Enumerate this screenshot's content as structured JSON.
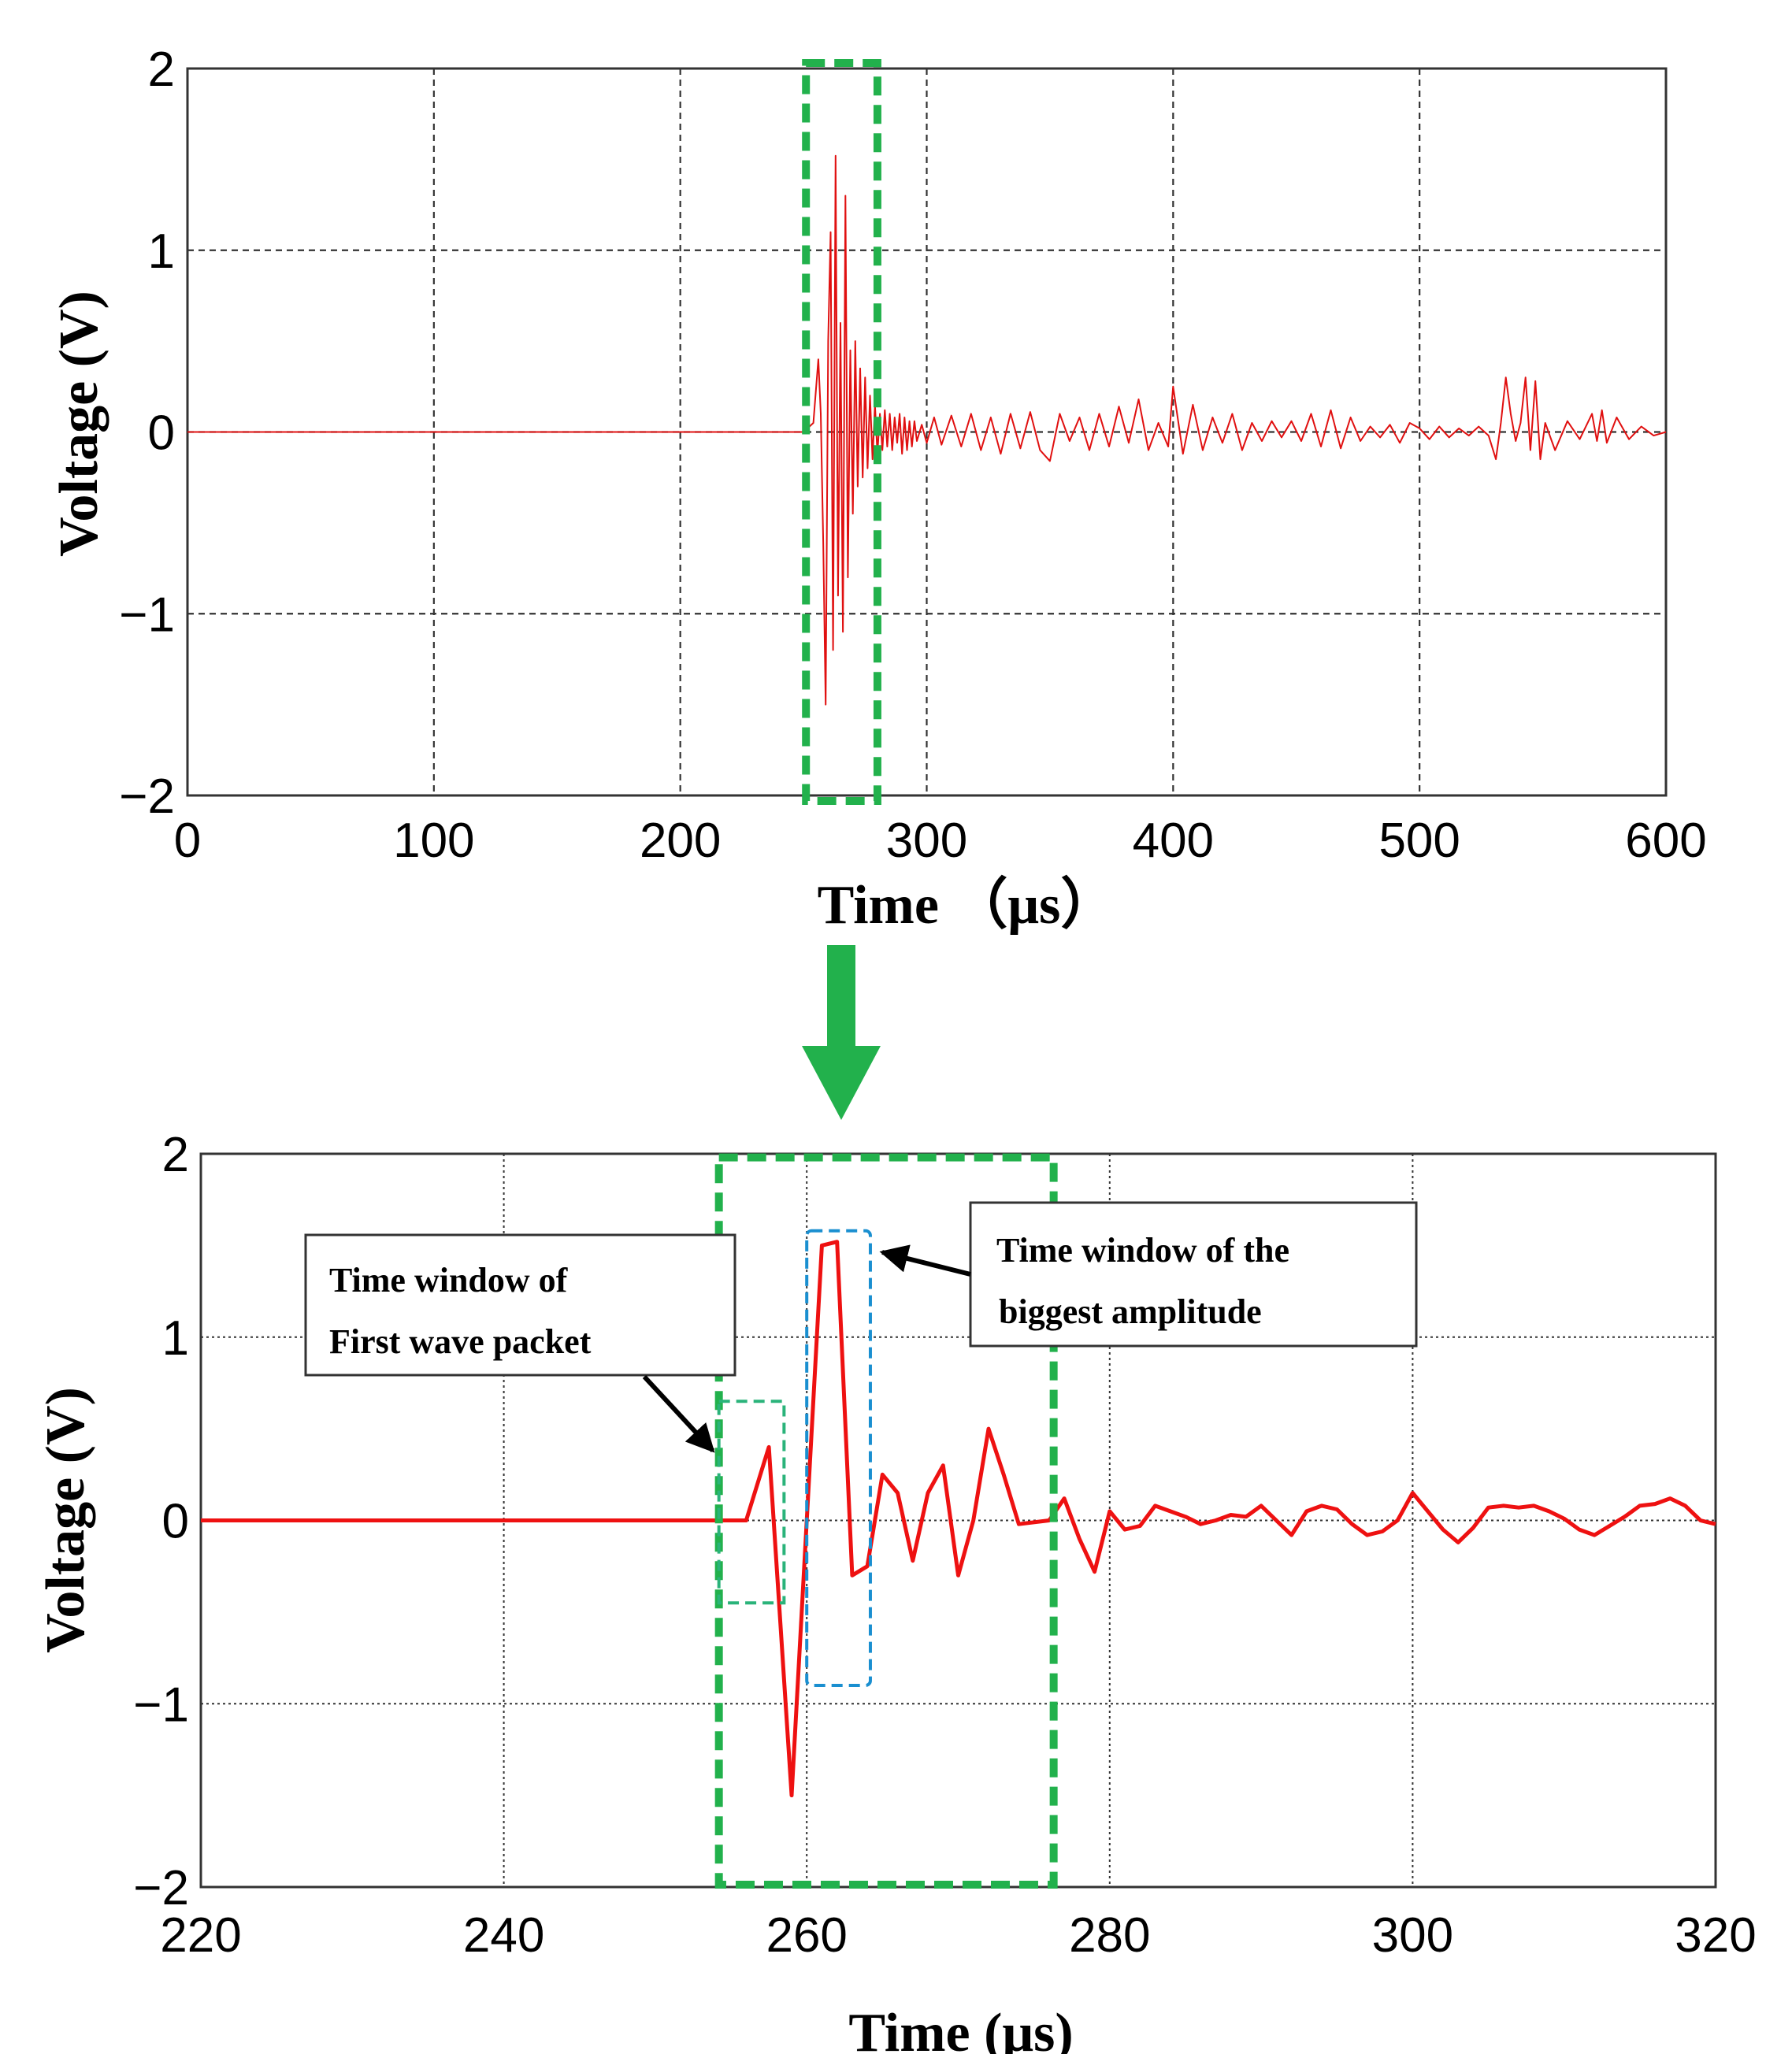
{
  "chart_data": [
    {
      "type": "line",
      "name": "full-signal",
      "xlabel": "Time （μs）",
      "ylabel": "Voltage (V)",
      "xlim": [
        0,
        600
      ],
      "ylim": [
        -2,
        2
      ],
      "xticks": [
        0,
        100,
        200,
        300,
        400,
        500,
        600
      ],
      "xtick_labels": [
        "0",
        "100",
        "200",
        "300",
        "400",
        "500",
        "600"
      ],
      "yticks": [
        -2,
        -1,
        0,
        1,
        2
      ],
      "ytick_labels": [
        "−2",
        "−1",
        "0",
        "1",
        "2"
      ],
      "grid": true,
      "line_color": "#e01010",
      "highlight_window": {
        "x_range": [
          251,
          280
        ],
        "y_range": [
          -2,
          2
        ],
        "color": "#22b14c"
      },
      "series": [
        {
          "name": "voltage",
          "x": [
            0,
            250,
            254,
            256,
            257,
            258,
            259,
            260,
            261,
            262,
            263,
            264,
            265,
            266,
            267,
            268,
            269,
            270,
            271,
            272,
            273,
            274,
            275,
            276,
            277,
            278,
            279,
            280,
            281,
            282,
            283,
            284,
            285,
            286,
            287,
            288,
            289,
            290,
            291,
            292,
            293,
            294,
            295,
            296,
            298,
            300,
            303,
            306,
            310,
            314,
            318,
            322,
            326,
            330,
            334,
            338,
            342,
            346,
            350,
            354,
            358,
            362,
            366,
            370,
            374,
            378,
            382,
            386,
            390,
            394,
            398,
            400,
            404,
            408,
            412,
            416,
            420,
            424,
            428,
            432,
            436,
            440,
            444,
            448,
            452,
            456,
            460,
            464,
            468,
            472,
            476,
            480,
            484,
            488,
            492,
            496,
            500,
            504,
            508,
            512,
            516,
            520,
            524,
            528,
            531,
            533,
            535,
            537,
            539,
            541,
            543,
            545,
            547,
            549,
            551,
            555,
            560,
            565,
            570,
            572,
            574,
            576,
            580,
            585,
            590,
            595,
            600
          ],
          "y": [
            0,
            0,
            0.05,
            0.4,
            0.1,
            -0.6,
            -1.5,
            0.5,
            1.1,
            -1.2,
            1.52,
            -0.9,
            0.6,
            -1.1,
            1.3,
            -0.8,
            0.45,
            -0.45,
            0.5,
            -0.3,
            0.35,
            -0.25,
            0.3,
            -0.2,
            0.2,
            -0.15,
            0.15,
            -0.12,
            0.1,
            -0.1,
            0.12,
            -0.08,
            0.1,
            -0.1,
            0.08,
            -0.06,
            0.1,
            -0.12,
            0.08,
            -0.1,
            0.06,
            -0.08,
            0.06,
            -0.05,
            0.04,
            -0.06,
            0.08,
            -0.07,
            0.09,
            -0.08,
            0.1,
            -0.1,
            0.08,
            -0.12,
            0.1,
            -0.09,
            0.11,
            -0.1,
            -0.16,
            0.1,
            -0.05,
            0.08,
            -0.1,
            0.1,
            -0.08,
            0.14,
            -0.06,
            0.18,
            -0.1,
            0.05,
            -0.08,
            0.25,
            -0.12,
            0.15,
            -0.1,
            0.08,
            -0.06,
            0.1,
            -0.1,
            0.05,
            -0.05,
            0.06,
            -0.03,
            0.06,
            -0.05,
            0.1,
            -0.08,
            0.12,
            -0.09,
            0.08,
            -0.05,
            0.03,
            -0.03,
            0.04,
            -0.06,
            0.05,
            0.02,
            -0.04,
            0.03,
            -0.03,
            0.02,
            -0.02,
            0.03,
            -0.02,
            -0.15,
            0.05,
            0.3,
            0.1,
            -0.05,
            0.05,
            0.3,
            -0.1,
            0.28,
            -0.15,
            0.05,
            -0.1,
            0.06,
            -0.04,
            0.1,
            -0.05,
            0.12,
            -0.06,
            0.08,
            -0.04,
            0.03,
            -0.02,
            0
          ]
        }
      ]
    },
    {
      "type": "line",
      "name": "zoomed-signal",
      "xlabel": "Time (μs)",
      "ylabel": "Voltage (V)",
      "xlim": [
        220,
        320
      ],
      "ylim": [
        -2,
        2
      ],
      "xticks": [
        220,
        240,
        260,
        280,
        300,
        320
      ],
      "xtick_labels": [
        "220",
        "240",
        "260",
        "280",
        "300",
        "320"
      ],
      "yticks": [
        -2,
        -1,
        0,
        1,
        2
      ],
      "ytick_labels": [
        "−2",
        "−1",
        "0",
        "1",
        "2"
      ],
      "grid": true,
      "line_color": "#ee1111",
      "highlight_window": {
        "x_range": [
          254.2,
          276.3
        ],
        "y_range": [
          -2,
          1.98
        ],
        "color": "#22b14c"
      },
      "first_packet_window": {
        "x_range": [
          254.2,
          258.5
        ],
        "y_range": [
          -0.45,
          0.65
        ],
        "color": "#2ab37a"
      },
      "max_amplitude_window": {
        "x_range": [
          260,
          264.2
        ],
        "y_range": [
          -0.9,
          1.58
        ],
        "color": "#1a8fd0"
      },
      "annotations": [
        {
          "text": "Time window of First wave packet",
          "lines": [
            "Time window of",
            "First wave packet"
          ],
          "points_to": [
            254.2,
            0.4
          ]
        },
        {
          "text": "Time window of the biggest amplitude",
          "lines": [
            "Time window of the",
            "biggest amplitude"
          ],
          "points_to": [
            264.2,
            1.5
          ]
        }
      ],
      "series": [
        {
          "name": "voltage",
          "x": [
            220,
            256,
            257.5,
            259,
            261,
            262,
            263,
            264,
            265,
            266,
            267,
            268,
            269,
            270,
            271,
            272,
            273,
            274,
            276,
            277,
            278,
            279,
            280,
            281,
            282,
            283,
            284,
            285,
            286,
            287,
            288,
            289,
            290,
            291,
            292,
            293,
            294,
            295,
            296,
            297,
            298,
            299,
            300,
            301,
            302,
            303,
            304,
            305,
            306,
            307,
            308,
            309,
            310,
            311,
            312,
            313,
            314,
            315,
            316,
            317,
            318,
            319,
            320
          ],
          "y": [
            0,
            0,
            0.4,
            -1.5,
            1.5,
            1.52,
            -0.3,
            -0.25,
            0.25,
            0.15,
            -0.22,
            0.15,
            0.3,
            -0.3,
            0.0,
            0.5,
            0.25,
            -0.02,
            0.0,
            0.12,
            -0.1,
            -0.28,
            0.05,
            -0.05,
            -0.03,
            0.08,
            0.05,
            0.02,
            -0.02,
            0.0,
            0.03,
            0.02,
            0.08,
            0.0,
            -0.08,
            0.05,
            0.08,
            0.06,
            -0.02,
            -0.08,
            -0.06,
            0.0,
            0.15,
            0.05,
            -0.05,
            -0.12,
            -0.04,
            0.07,
            0.08,
            0.07,
            0.08,
            0.05,
            0.01,
            -0.05,
            -0.08,
            -0.03,
            0.02,
            0.08,
            0.09,
            0.12,
            0.08,
            0.0,
            -0.02
          ]
        }
      ]
    }
  ],
  "colors": {
    "arrow": "#22b14c",
    "window_green": "#22b14c",
    "window_teal": "#2ab37a",
    "window_blue": "#1a8fd0",
    "grid": "#333333"
  }
}
